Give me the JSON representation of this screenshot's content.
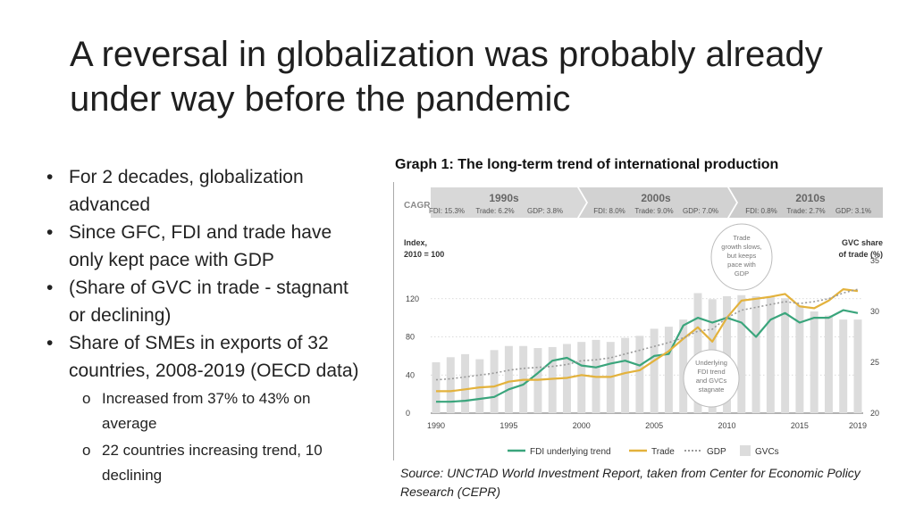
{
  "slide": {
    "title": "A reversal in globalization was probably already under way before the pandemic",
    "bullets": [
      {
        "text": "For 2 decades, globalization advanced",
        "level": 1
      },
      {
        "text": "Since GFC, FDI and trade have only kept pace with GDP",
        "level": 1
      },
      {
        "text": "(Share of GVC in trade - stagnant or declining)",
        "level": 1
      },
      {
        "text": "Share of SMEs in exports of 32 countries, 2008-2019 (OECD data)",
        "level": 1
      },
      {
        "text": "Increased from 37% to 43% on average",
        "level": 2
      },
      {
        "text": "22 countries increasing trend, 10  declining",
        "level": 2
      }
    ],
    "bullet_glyphs": {
      "level1": "•",
      "level2": "o"
    },
    "graph_title": "Graph 1: The long-term trend of international production",
    "source": "Source: UNCTAD World Investment Report, taken from Center for Economic Policy Research (CEPR)"
  },
  "chart_data": {
    "type": "line",
    "cagr": {
      "label": "CAGR",
      "periods": [
        {
          "name": "1990s",
          "fdi": "FDI: 15.3%",
          "trade": "Trade: 6.2%",
          "gdp": "GDP: 3.8%"
        },
        {
          "name": "2000s",
          "fdi": "FDI: 8.0%",
          "trade": "Trade: 9.0%",
          "gdp": "GDP: 7.0%"
        },
        {
          "name": "2010s",
          "fdi": "FDI: 0.8%",
          "trade": "Trade: 2.7%",
          "gdp": "GDP: 3.1%"
        }
      ]
    },
    "ylabel_left": [
      "Index,",
      "2010 = 100"
    ],
    "ylabel_right": [
      "GVC share",
      "of trade (%)"
    ],
    "yticks_left": [
      0,
      40,
      80,
      120
    ],
    "yticks_right": [
      20,
      25,
      30,
      35
    ],
    "ylim_left": [
      0,
      160
    ],
    "ylim_right": [
      20,
      35
    ],
    "xticks": [
      1990,
      1995,
      2000,
      2005,
      2010,
      2015,
      2019
    ],
    "annotations": [
      {
        "lines": [
          "Trade",
          "growth slows,",
          "but keeps",
          "pace with",
          "GDP"
        ]
      },
      {
        "lines": [
          "Underlying",
          "FDI trend",
          "and GVCs",
          "stagnate"
        ]
      }
    ],
    "legend": [
      {
        "name": "FDI underlying trend",
        "style": "solid",
        "color": "#3aa57c"
      },
      {
        "name": "Trade",
        "style": "solid",
        "color": "#e3b23c"
      },
      {
        "name": "GDP",
        "style": "dotted",
        "color": "#9a9a9a"
      },
      {
        "name": "GVCs",
        "style": "bar",
        "color": "#dcdcdc"
      }
    ],
    "x": [
      1990,
      1991,
      1992,
      1993,
      1994,
      1995,
      1996,
      1997,
      1998,
      1999,
      2000,
      2001,
      2002,
      2003,
      2004,
      2005,
      2006,
      2007,
      2008,
      2009,
      2010,
      2011,
      2012,
      2013,
      2014,
      2015,
      2016,
      2017,
      2018,
      2019
    ],
    "series": [
      {
        "name": "FDI underlying trend",
        "color": "#3aa57c",
        "values": [
          12,
          12,
          13,
          15,
          17,
          25,
          30,
          42,
          55,
          58,
          50,
          48,
          52,
          55,
          50,
          60,
          62,
          92,
          100,
          95,
          100,
          95,
          80,
          98,
          105,
          95,
          100,
          100,
          108,
          105
        ]
      },
      {
        "name": "Trade",
        "color": "#e3b23c",
        "values": [
          23,
          23,
          25,
          27,
          28,
          33,
          35,
          35,
          36,
          37,
          40,
          38,
          38,
          42,
          45,
          55,
          65,
          78,
          90,
          75,
          100,
          118,
          120,
          122,
          125,
          112,
          110,
          118,
          130,
          128
        ]
      },
      {
        "name": "GDP",
        "color": "#9a9a9a",
        "values": [
          35,
          36,
          38,
          40,
          42,
          45,
          47,
          48,
          49,
          51,
          55,
          56,
          58,
          62,
          66,
          70,
          74,
          79,
          86,
          88,
          100,
          108,
          111,
          114,
          117,
          115,
          117,
          120,
          126,
          130
        ]
      }
    ],
    "bars": {
      "name": "GVCs",
      "color": "#dcdcdc",
      "x": [
        1990,
        1991,
        1992,
        1993,
        1994,
        1995,
        1996,
        1997,
        1998,
        1999,
        2000,
        2001,
        2002,
        2003,
        2004,
        2005,
        2006,
        2007,
        2008,
        2009,
        2010,
        2011,
        2012,
        2013,
        2014,
        2015,
        2016,
        2017,
        2018,
        2019
      ],
      "values": [
        25.0,
        25.5,
        25.8,
        25.3,
        26.2,
        26.6,
        26.6,
        26.4,
        26.5,
        26.8,
        27.0,
        27.2,
        27.0,
        27.4,
        27.6,
        28.3,
        28.5,
        29.2,
        31.8,
        31.2,
        31.5,
        31.6,
        31.5,
        31.5,
        31.3,
        30.6,
        30.0,
        29.6,
        29.2,
        29.2
      ]
    }
  }
}
